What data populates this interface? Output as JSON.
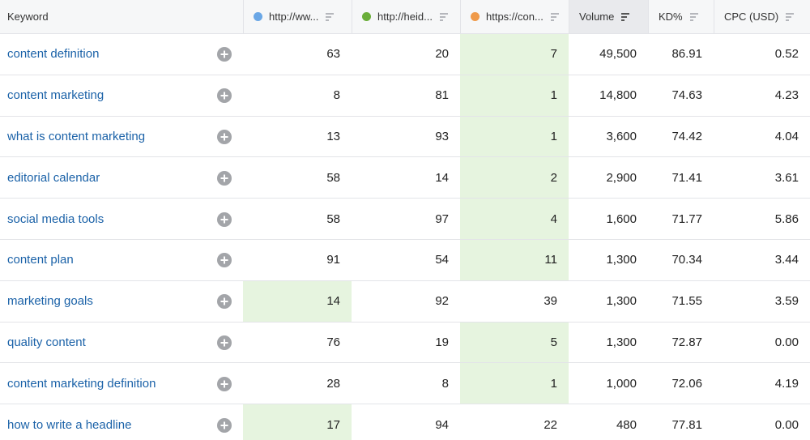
{
  "table": {
    "header": [
      {
        "label": "Keyword"
      },
      {
        "label": "http://ww...",
        "color": "#6aa7e6"
      },
      {
        "label": "http://heid...",
        "color": "#6aae3a"
      },
      {
        "label": "https://con...",
        "color": "#ef9a4a"
      },
      {
        "label": "Volume"
      },
      {
        "label": "KD%"
      },
      {
        "label": "CPC (USD)"
      }
    ],
    "rows": [
      [
        "content definition",
        "63",
        "20",
        "7",
        "49,500",
        "86.91",
        "0.52"
      ],
      [
        "content marketing",
        "8",
        "81",
        "1",
        "14,800",
        "74.63",
        "4.23"
      ],
      [
        "what is content marketing",
        "13",
        "93",
        "1",
        "3,600",
        "74.42",
        "4.04"
      ],
      [
        "editorial calendar",
        "58",
        "14",
        "2",
        "2,900",
        "71.41",
        "3.61"
      ],
      [
        "social media tools",
        "58",
        "97",
        "4",
        "1,600",
        "71.77",
        "5.86"
      ],
      [
        "content plan",
        "91",
        "54",
        "11",
        "1,300",
        "70.34",
        "3.44"
      ],
      [
        "marketing goals",
        "14",
        "92",
        "39",
        "1,300",
        "71.55",
        "3.59"
      ],
      [
        "quality content",
        "76",
        "19",
        "5",
        "1,300",
        "72.87",
        "0.00"
      ],
      [
        "content marketing definition",
        "28",
        "8",
        "1",
        "1,000",
        "72.06",
        "4.19"
      ],
      [
        "how to write a headline",
        "17",
        "94",
        "22",
        "480",
        "77.81",
        "0.00"
      ]
    ]
  }
}
